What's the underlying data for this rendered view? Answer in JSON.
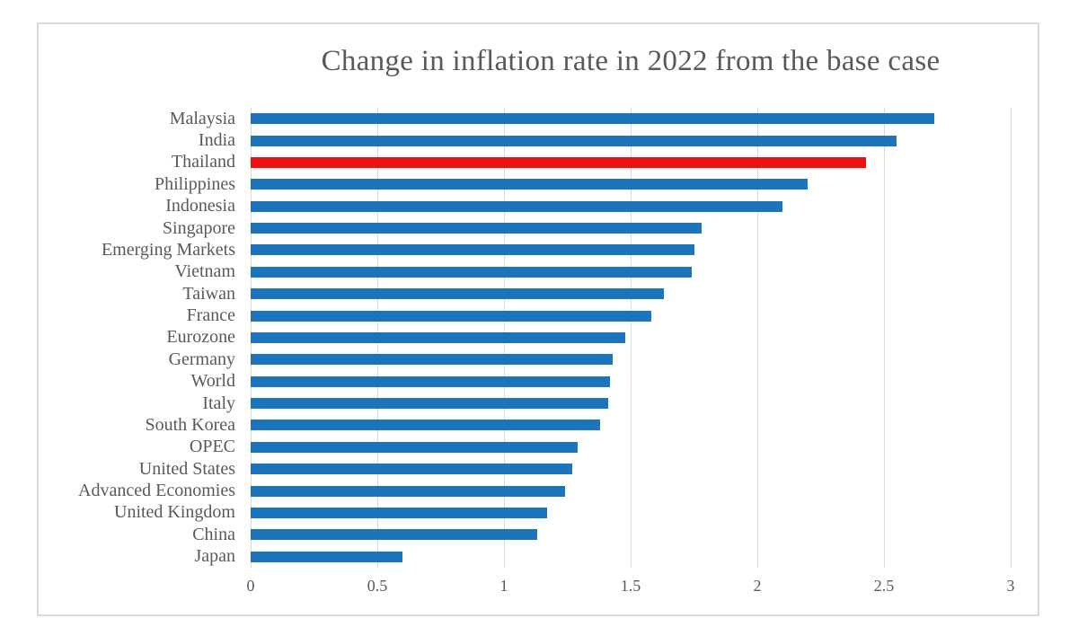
{
  "chart": {
    "colors": {
      "bar": "#1b74bc",
      "highlight": "#ee1111",
      "grid": "#d9d9d9",
      "frame_border": "#d9d9d9",
      "text": "#595959"
    }
  },
  "chart_data": {
    "type": "bar",
    "orientation": "horizontal",
    "title": "Change in inflation rate in 2022 from the base case",
    "categories": [
      "Malaysia",
      "India",
      "Thailand",
      "Philippines",
      "Indonesia",
      "Singapore",
      "Emerging Markets",
      "Vietnam",
      "Taiwan",
      "France",
      "Eurozone",
      "Germany",
      "World",
      "Italy",
      "South Korea",
      "OPEC",
      "United States",
      "Advanced Economies",
      "United Kingdom",
      "China",
      "Japan"
    ],
    "values": [
      2.7,
      2.55,
      2.43,
      2.2,
      2.1,
      1.78,
      1.75,
      1.74,
      1.63,
      1.58,
      1.48,
      1.43,
      1.42,
      1.41,
      1.38,
      1.29,
      1.27,
      1.24,
      1.17,
      1.13,
      0.6
    ],
    "highlighted_category": "Thailand",
    "highlight_color": "#ee1111",
    "bar_color": "#1b74bc",
    "xlim": [
      0,
      3
    ],
    "xticks": [
      0,
      0.5,
      1,
      1.5,
      2,
      2.5,
      3
    ],
    "xtick_labels": [
      "0",
      "0.5",
      "1",
      "1.5",
      "2",
      "2.5",
      "3"
    ],
    "grid": "vertical",
    "legend": "none",
    "xlabel": "",
    "ylabel": ""
  }
}
